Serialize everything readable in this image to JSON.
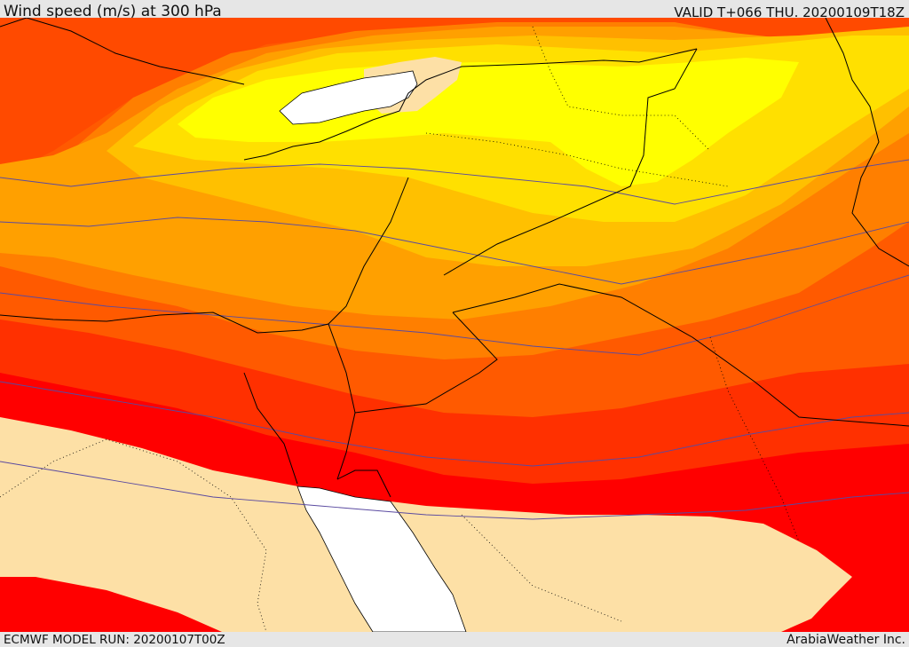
{
  "header": {
    "title": "Wind speed (m/s) at 300 hPa",
    "valid": "VALID T+066 THU. 20200109T18Z"
  },
  "footer": {
    "model_run": "ECMWF MODEL RUN: 20200107T00Z",
    "credit": "ArabiaWeather Inc."
  },
  "map": {
    "field": "Wind speed (m/s) at 300 hPa",
    "level_colors": [
      "#fde0a6",
      "#ffff00",
      "#ffe000",
      "#ffc000",
      "#ffa000",
      "#ff7f00",
      "#ff5a00",
      "#ff3000",
      "#ff0000"
    ],
    "water_color": "#ffffff",
    "contour_line_color": "#5a4aa0",
    "border_color": "#000000"
  }
}
